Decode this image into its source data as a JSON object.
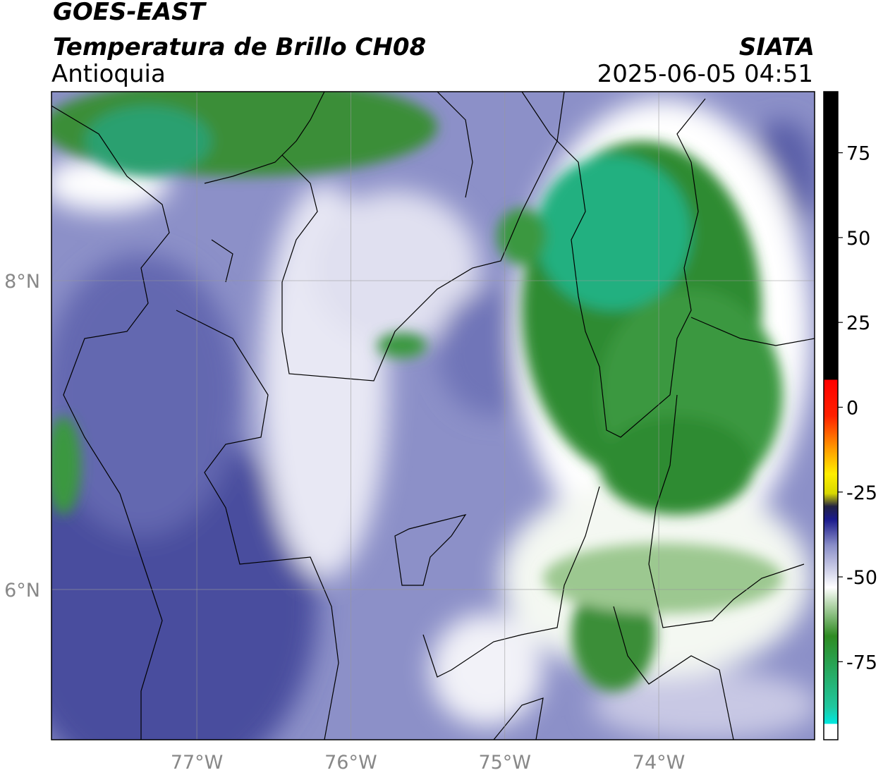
{
  "header": {
    "satellite": "GOES-EAST",
    "product": "Temperatura de Brillo CH08",
    "region": "Antioquia",
    "source": "SIATA",
    "datetime": "2025-06-05 04:51"
  },
  "map": {
    "xlim": [
      -77.944,
      -72.988
    ],
    "ylim": [
      5.027,
      9.224
    ],
    "xticks": [
      {
        "value": -77,
        "label": "77°W"
      },
      {
        "value": -76,
        "label": "76°W"
      },
      {
        "value": -75,
        "label": "75°W"
      },
      {
        "value": -74,
        "label": "74°W"
      }
    ],
    "yticks": [
      {
        "value": 6,
        "label": "6°N"
      },
      {
        "value": 8,
        "label": "8°N"
      }
    ],
    "grid": true
  },
  "colorbar": {
    "lim": [
      -98,
      93
    ],
    "ticks": [
      75,
      50,
      25,
      0,
      -25,
      -50,
      -75
    ]
  }
}
